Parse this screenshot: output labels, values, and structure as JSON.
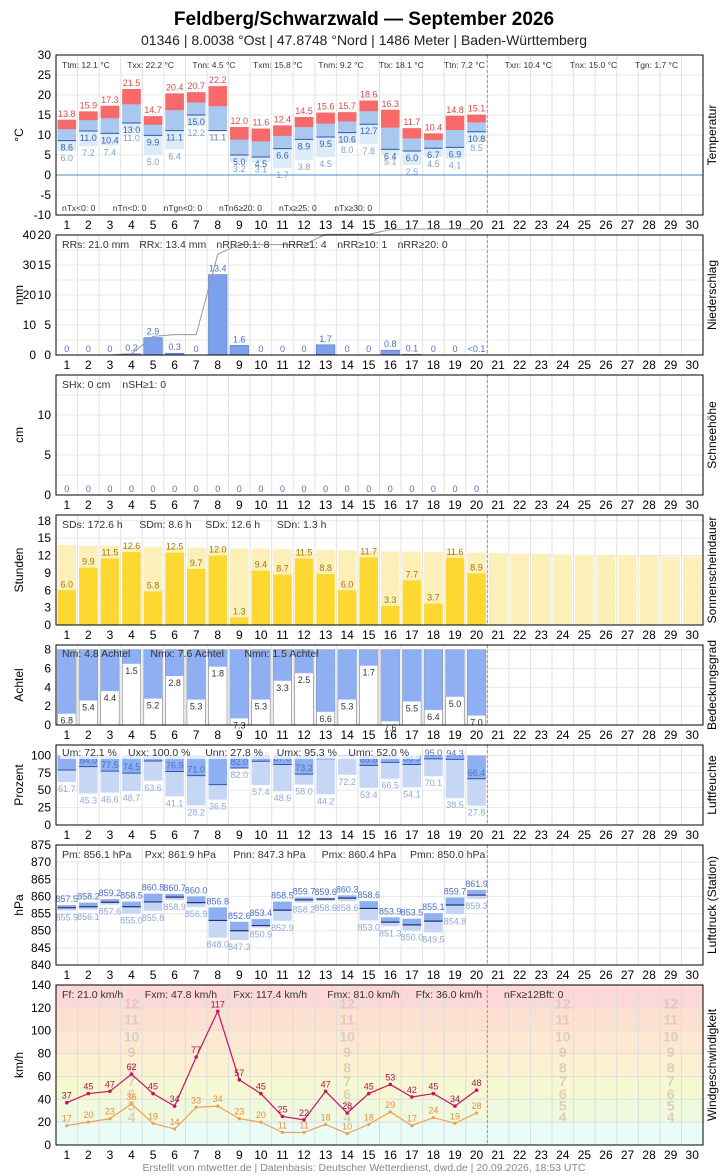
{
  "header": {
    "title": "Feldberg/Schwarzwald  —  September 2026",
    "subtitle": "01346  |  8.0038 °Ost  |  47.8748 °Nord  |  1486 Meter  |  Baden-Württemberg"
  },
  "footer": "Erstellt von mtwetter.de | Datenbasis: Deutscher Wetterdienst, dwd.de | 20.09.2026, 18:53 UTC",
  "colors": {
    "tmax_bar": "#f86a6a",
    "tmean_bar": "#a8c8f0",
    "tmin_bar": "#dcebf8",
    "precip_bar": "#7ba1ec",
    "precip_line": "#999999",
    "sun_bar": "#fcd831",
    "sun_possible": "#fcefb8",
    "cloud_bar": "#8eaff2",
    "hum_bar": "#8eaff2",
    "pres_bar": "#8eaff2",
    "wind_gust": "#cc1166",
    "wind_mean": "#f2a050",
    "today_line": "#f07070"
  },
  "chart_data": [
    {
      "type": "bar",
      "name": "temperature",
      "right_label": "Temperatur",
      "ylabel": "°C",
      "ylim": [
        -10,
        30
      ],
      "yticks": [
        -10,
        -5,
        0,
        5,
        10,
        15,
        20,
        25,
        30
      ],
      "days": [
        1,
        2,
        3,
        4,
        5,
        6,
        7,
        8,
        9,
        10,
        11,
        12,
        13,
        14,
        15,
        16,
        17,
        18,
        19,
        20,
        21,
        22,
        23,
        24,
        25,
        26,
        27,
        28,
        29,
        30
      ],
      "stats_top": [
        "Ttm: 12.1 °C",
        "Txx: 22.2 °C",
        "Tnn: 4.5 °C",
        "Txm: 15.8 °C",
        "Tnm: 9.2 °C",
        "Ttx: 18.1 °C",
        "Ttn: 7.2 °C",
        "Txn: 10.4 °C",
        "Tnx: 15.0 °C",
        "Tgn: 1.7 °C"
      ],
      "stats_bottom": [
        "nTx<0: 0",
        "nTn<0: 0",
        "nTgn<0: 0",
        "nTn6≥20: 0",
        "nTx≥25: 0",
        "nTx≥30: 0"
      ],
      "tmax": [
        13.8,
        15.9,
        17.3,
        21.5,
        14.7,
        20.4,
        20.7,
        22.2,
        12.0,
        11.6,
        12.4,
        14.5,
        15.6,
        15.7,
        18.6,
        16.3,
        11.7,
        10.4,
        14.8,
        15.1
      ],
      "tmean": [
        8.6,
        11.0,
        10.4,
        13.0,
        9.9,
        11.1,
        15.0,
        11.1,
        5.0,
        4.5,
        6.6,
        8.9,
        9.5,
        10.6,
        12.7,
        6.4,
        6.0,
        6.7,
        6.9,
        10.8
      ],
      "tmin": [
        6.0,
        7.2,
        7.4,
        11.0,
        5.0,
        6.4,
        12.2,
        11.1,
        3.2,
        3.1,
        1.7,
        3.8,
        4.5,
        8.0,
        7.8,
        5.1,
        2.5,
        4.5,
        4.1,
        8.5
      ]
    },
    {
      "type": "bar",
      "name": "precipitation",
      "right_label": "Niederschlag",
      "ylabel": "mm",
      "ylim": [
        0,
        40
      ],
      "yticks_left": [
        0,
        10,
        20,
        30,
        40
      ],
      "yticks_mid": [
        0,
        5,
        10,
        15,
        20
      ],
      "stats": [
        "RRs: 21.0 mm",
        "RRx: 13.4 mm",
        "nRR≥0.1: 8",
        "nRR≥1: 4",
        "nRR≥10: 1",
        "nRR≥20: 0"
      ],
      "values": [
        0,
        0,
        0,
        0.2,
        2.9,
        0.3,
        0,
        13.4,
        1.6,
        0,
        0,
        0,
        1.7,
        0,
        0,
        0.8,
        0.1,
        0,
        0,
        0
      ],
      "labels": [
        "0",
        "0",
        "0",
        "0.2",
        "2.9",
        "0.3",
        "0",
        "13.4",
        "1.6",
        "0",
        "0",
        "0",
        "1.7",
        "0",
        "0",
        "0.8",
        "0.1",
        "0",
        "0",
        "<0.1"
      ],
      "cumulative": [
        0,
        0,
        0,
        0.2,
        3.1,
        3.4,
        3.4,
        16.8,
        18.4,
        18.4,
        18.4,
        18.4,
        20.1,
        20.1,
        20.1,
        20.9,
        21.0,
        21.0,
        21.0,
        21.0
      ]
    },
    {
      "type": "bar",
      "name": "snow",
      "right_label": "Schneehöhe",
      "ylabel": "cm",
      "ylim": [
        0,
        15
      ],
      "yticks": [
        0,
        5,
        10
      ],
      "stats": [
        "SHx: 0 cm",
        "nSH≥1: 0"
      ],
      "values": [
        0,
        0,
        0,
        0,
        0,
        0,
        0,
        0,
        0,
        0,
        0,
        0,
        0,
        0,
        0,
        0,
        0,
        0,
        0,
        0
      ]
    },
    {
      "type": "bar",
      "name": "sunshine",
      "right_label": "Sonnenscheindauer",
      "ylabel": "Stunden",
      "ylim": [
        0,
        19
      ],
      "yticks": [
        0,
        3,
        6,
        9,
        12,
        15,
        18
      ],
      "stats": [
        "SDs: 172.6 h",
        "SDm: 8.6 h",
        "SDx: 12.6 h",
        "SDn: 1.3 h"
      ],
      "values": [
        6.0,
        9.9,
        11.5,
        12.6,
        5.8,
        12.5,
        9.7,
        12.0,
        1.3,
        9.4,
        8.7,
        11.5,
        8.8,
        6.0,
        11.7,
        3.3,
        7.7,
        3.7,
        11.6,
        8.9
      ],
      "possible": [
        13.8,
        13.7,
        13.7,
        13.6,
        13.5,
        13.4,
        13.4,
        13.3,
        13.2,
        13.2,
        13.1,
        13.0,
        13.0,
        12.9,
        12.8,
        12.7,
        12.7,
        12.6,
        12.5,
        12.5,
        12.4,
        12.3,
        12.3,
        12.2,
        12.1,
        12.0,
        12.0,
        11.9,
        11.8,
        11.8
      ]
    },
    {
      "type": "bar",
      "name": "cloud_cover",
      "right_label": "Bedeckungsgrad",
      "ylabel": "Achtel",
      "ylim": [
        0,
        8.5
      ],
      "yticks": [
        0,
        2,
        4,
        6,
        8
      ],
      "stats": [
        "Nm: 4.8 Achtel",
        "Nmx: 7.6 Achtel",
        "Nmn: 1.5 Achtel"
      ],
      "values": [
        6.8,
        5.4,
        4.4,
        1.5,
        5.2,
        2.8,
        5.3,
        1.8,
        7.3,
        5.3,
        3.3,
        2.5,
        6.6,
        5.3,
        1.7,
        7.6,
        5.5,
        6.4,
        5.0,
        7.0
      ]
    },
    {
      "type": "bar",
      "name": "humidity",
      "right_label": "Luftfeuchte",
      "ylabel": "Prozent",
      "ylim": [
        0,
        115
      ],
      "yticks": [
        0,
        25,
        50,
        75,
        100
      ],
      "stats": [
        "Um: 72.1 %",
        "Uxx: 100.0 %",
        "Unn: 27.8 %",
        "Umx: 95.3 %",
        "Umn: 52.0 %"
      ],
      "max": [
        100,
        100,
        100,
        100,
        100,
        100,
        100,
        100,
        100,
        100,
        100,
        100,
        100,
        100,
        100,
        100,
        100,
        100,
        100,
        100
      ],
      "mean": [
        79.0,
        84.0,
        77.5,
        74.5,
        92.0,
        76.9,
        71.0,
        58.0,
        82.0,
        91.6,
        87.0,
        73.2,
        95.3,
        100.0,
        85.8,
        90.0,
        86.9,
        95.0,
        94.3,
        66.4
      ],
      "min": [
        61.7,
        45.3,
        46.6,
        48.7,
        63.6,
        41.1,
        28.2,
        36.5,
        82.0,
        57.4,
        48.6,
        58.0,
        44.2,
        72.2,
        53.4,
        66.5,
        54.1,
        70.1,
        38.5,
        27.8
      ],
      "mean_labels": [
        "",
        "84.0",
        "77.5",
        "74.5",
        "",
        "76.9",
        "71.0",
        "",
        "82.0",
        "91.6",
        "87.0",
        "73.2",
        "",
        "",
        "85.8",
        "",
        "86.9",
        "95.0",
        "94.3",
        "66.4"
      ]
    },
    {
      "type": "bar",
      "name": "pressure",
      "right_label": "Luftdruck (Station)",
      "ylabel": "hPa",
      "ylim": [
        840,
        875
      ],
      "yticks": [
        840,
        845,
        850,
        855,
        860,
        865,
        870,
        875
      ],
      "stats": [
        "Pm: 856.1 hPa",
        "Pxx: 861.9 hPa",
        "Pnn: 847.3 hPa",
        "Pmx: 860.4 hPa",
        "Pmn: 850.0 hPa"
      ],
      "max": [
        857.5,
        858.2,
        859.2,
        858.5,
        860.8,
        860.7,
        860.0,
        856.8,
        852.6,
        853.4,
        858.5,
        859.7,
        859.6,
        860.3,
        858.6,
        853.9,
        853.5,
        855.1,
        859.7,
        861.9
      ],
      "mean": [
        856.7,
        857.0,
        858.3,
        857.0,
        858.4,
        859.8,
        858.2,
        853.0,
        850.0,
        851.5,
        856.0,
        859.0,
        859.2,
        859.5,
        856.5,
        852.5,
        851.7,
        852.8,
        857.5,
        860.4
      ],
      "min": [
        855.9,
        856.1,
        857.6,
        855.0,
        855.8,
        858.9,
        856.9,
        848.0,
        847.3,
        850.9,
        852.9,
        858.2,
        858.6,
        858.6,
        853.0,
        851.3,
        850.0,
        849.5,
        854.8,
        859.3
      ]
    },
    {
      "type": "line",
      "name": "wind",
      "right_label": "Windgeschwindigkeit",
      "ylabel": "km/h",
      "ylim": [
        0,
        140
      ],
      "yticks": [
        0,
        20,
        40,
        60,
        80,
        100,
        120,
        140
      ],
      "stats": [
        "Ff: 21.0 km/h",
        "Fxm: 47.8 km/h",
        "Fxx: 117.4 km/h",
        "Fmx: 81.0 km/h",
        "Ffx: 36.0 km/h",
        "nFx≥12Bft: 0"
      ],
      "gust": [
        37,
        45,
        47,
        62,
        45,
        34,
        77,
        117,
        57,
        45,
        25,
        22,
        47,
        28,
        45,
        53,
        42,
        45,
        34,
        48
      ],
      "mean": [
        17,
        20,
        23,
        36,
        19,
        14,
        33,
        34,
        23,
        20,
        11,
        11,
        18,
        10,
        18,
        29,
        17,
        24,
        19,
        28
      ],
      "beaufort": [
        {
          "b": "4",
          "v": 24.5
        },
        {
          "b": "5",
          "v": 34.5
        },
        {
          "b": "6",
          "v": 44.5
        },
        {
          "b": "7",
          "v": 56
        },
        {
          "b": "8",
          "v": 68
        },
        {
          "b": "9",
          "v": 81.5
        },
        {
          "b": "10",
          "v": 95
        },
        {
          "b": "11",
          "v": 110
        },
        {
          "b": "12",
          "v": 124
        }
      ]
    }
  ]
}
